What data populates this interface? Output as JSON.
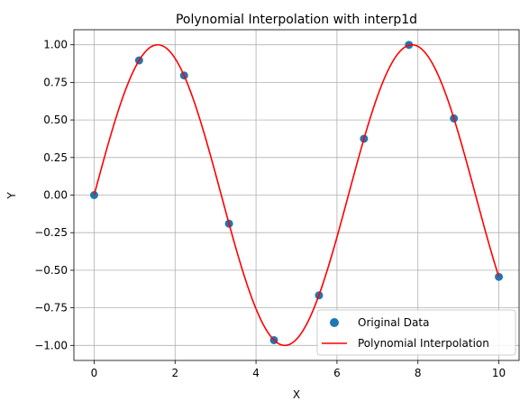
{
  "chart_data": {
    "type": "scatter",
    "title": "Polynomial Interpolation with interp1d",
    "xlabel": "X",
    "ylabel": "Y",
    "xlim": [
      -0.5,
      10.5
    ],
    "ylim": [
      -1.1,
      1.1
    ],
    "xticks": [
      0,
      2,
      4,
      6,
      8,
      10
    ],
    "xtick_labels": [
      "0",
      "2",
      "4",
      "6",
      "8",
      "10"
    ],
    "yticks": [
      -1.0,
      -0.75,
      -0.5,
      -0.25,
      0.0,
      0.25,
      0.5,
      0.75,
      1.0
    ],
    "ytick_labels": [
      "−1.00",
      "−0.75",
      "−0.50",
      "−0.25",
      "0.00",
      "0.25",
      "0.50",
      "0.75",
      "1.00"
    ],
    "grid": true,
    "legend_position": "lower-right",
    "series": [
      {
        "name": "Original Data",
        "kind": "scatter",
        "color": "#1f77b4",
        "x": [
          0,
          1.111,
          2.222,
          3.333,
          4.444,
          5.556,
          6.667,
          7.778,
          8.889,
          10
        ],
        "y": [
          0,
          0.896,
          0.796,
          -0.19,
          -0.965,
          -0.667,
          0.375,
          0.999,
          0.51,
          -0.544
        ]
      },
      {
        "name": "Polynomial Interpolation",
        "kind": "line",
        "color": "#ff0000",
        "function": "sin",
        "x_range": [
          0,
          10
        ]
      }
    ]
  }
}
